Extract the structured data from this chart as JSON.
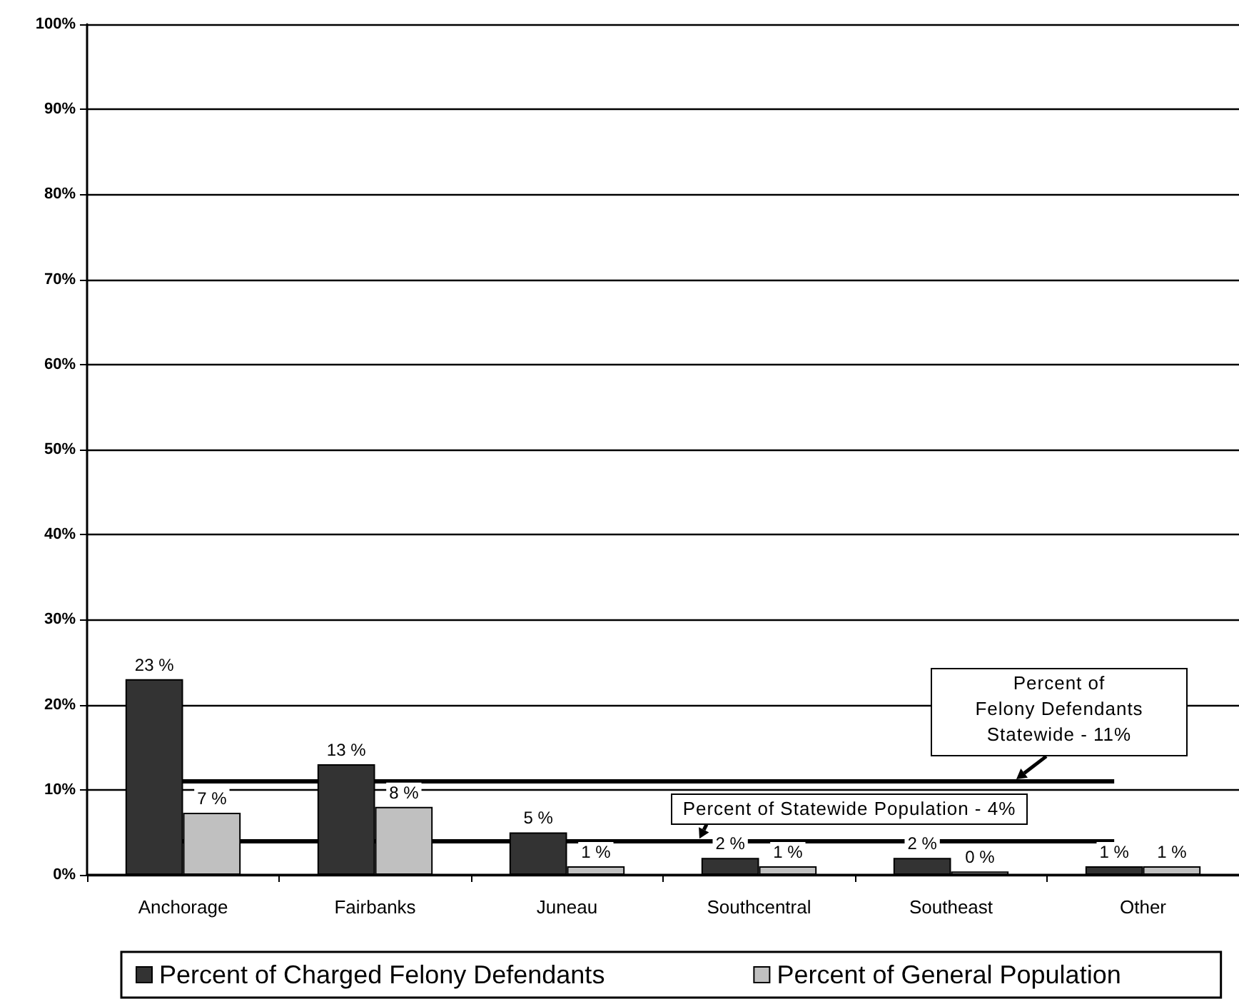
{
  "chart_data": {
    "type": "bar",
    "categories": [
      "Anchorage",
      "Fairbanks",
      "Juneau",
      "Southcentral",
      "Southeast",
      "Other"
    ],
    "series": [
      {
        "name": "Percent of Charged Felony Defendants",
        "color": "#333333",
        "values": [
          23,
          13,
          5,
          2,
          2,
          1
        ],
        "value_labels": [
          "23 %",
          "13 %",
          "5 %",
          "2 %",
          "2 %",
          "1 %"
        ]
      },
      {
        "name": "Percent of General Population",
        "color": "#c0c0c0",
        "values": [
          7.3,
          8,
          1,
          1,
          0.4,
          1
        ],
        "value_labels": [
          "7 %",
          "8 %",
          "1 %",
          "1 %",
          "0 %",
          "1 %"
        ]
      }
    ],
    "ylim": [
      0,
      100
    ],
    "yticks": [
      {
        "value": 0,
        "label": "0%"
      },
      {
        "value": 10,
        "label": "10%"
      },
      {
        "value": 20,
        "label": "20%"
      },
      {
        "value": 30,
        "label": "30%"
      },
      {
        "value": 40,
        "label": "40%"
      },
      {
        "value": 50,
        "label": "50%"
      },
      {
        "value": 60,
        "label": "60%"
      },
      {
        "value": 70,
        "label": "70%"
      },
      {
        "value": 80,
        "label": "80%"
      },
      {
        "value": 90,
        "label": "90%"
      },
      {
        "value": 100,
        "label": "100%"
      }
    ],
    "grid": "y",
    "legend": "bottom",
    "ref_lines": [
      {
        "axis": "y",
        "value": 11,
        "label": "Percent of\nFelony Defendants\nStatewide - 11%",
        "color": "#000000"
      },
      {
        "axis": "y",
        "value": 4,
        "label": "Percent of Statewide Population - 4%",
        "color": "#000000"
      }
    ]
  }
}
